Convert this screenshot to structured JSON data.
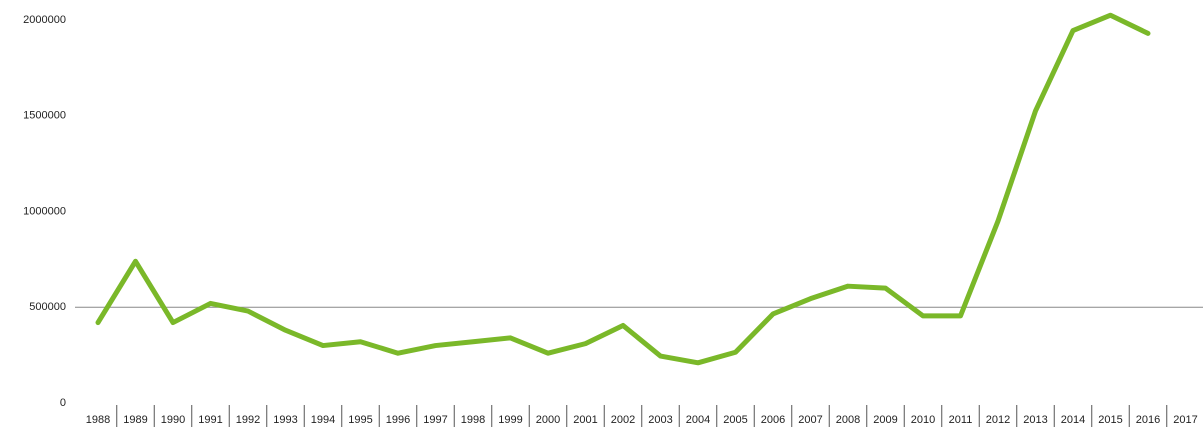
{
  "chart_data": {
    "type": "line",
    "categories": [
      "1988",
      "1989",
      "1990",
      "1991",
      "1992",
      "1993",
      "1994",
      "1995",
      "1996",
      "1997",
      "1998",
      "1999",
      "2000",
      "2001",
      "2002",
      "2003",
      "2004",
      "2005",
      "2006",
      "2007",
      "2008",
      "2009",
      "2010",
      "2011",
      "2012",
      "2013",
      "2014",
      "2015",
      "2016",
      "2017"
    ],
    "series": [
      {
        "color": "#7ab829",
        "values": [
          420000,
          740000,
          420000,
          520000,
          480000,
          380000,
          300000,
          320000,
          260000,
          300000,
          320000,
          340000,
          260000,
          310000,
          405000,
          245000,
          210000,
          265000,
          465000,
          545000,
          610000,
          600000,
          455000,
          455000,
          950000,
          1525000,
          1945000,
          2025000,
          1930000,
          null
        ]
      }
    ],
    "ylim": [
      0,
      2000000
    ],
    "yticks": [
      0,
      500000,
      1000000,
      1500000,
      2000000
    ],
    "gridlines": [
      500000
    ]
  }
}
